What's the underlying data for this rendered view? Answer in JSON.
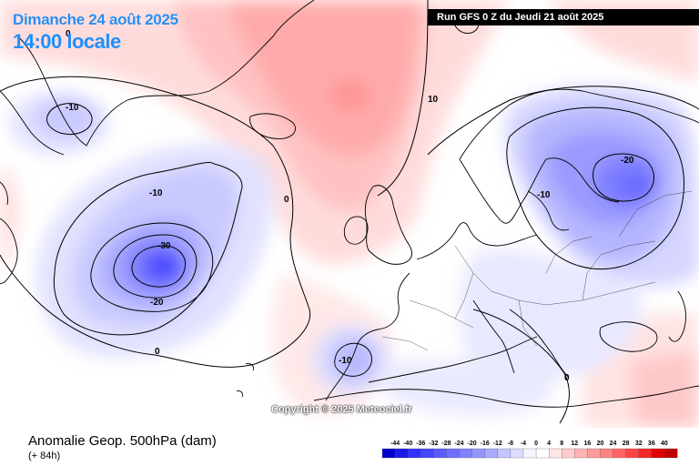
{
  "header": {
    "date_line": "Dimanche 24 août 2025",
    "time_line": "14:00 locale",
    "run_info": "Run GFS 0 Z du Jeudi 21 août 2025"
  },
  "footer": {
    "variable_title": "Anomalie Geop. 500hPa (dam)",
    "lead_time": "(+ 84h)",
    "copyright": "Copyright © 2025 Meteociel.fr"
  },
  "map": {
    "contour_labels": [
      "-10",
      "0",
      "-10",
      "-30",
      "-20",
      "0",
      "0",
      "10",
      "-10",
      "-20",
      "-10",
      "0"
    ],
    "anomaly_regions": [
      {
        "name": "greenland-atlantic-positive",
        "sign": "positive"
      },
      {
        "name": "north-atlantic-low",
        "sign": "negative",
        "min_label": "-30"
      },
      {
        "name": "scandinavia-russia-trough",
        "sign": "negative",
        "min_label": "-20"
      },
      {
        "name": "iberia-cutoff-low",
        "sign": "negative",
        "min_label": "-10"
      }
    ]
  },
  "legend": {
    "labels": [
      "-44",
      "-40",
      "-36",
      "-32",
      "-28",
      "-24",
      "-20",
      "-16",
      "-12",
      "-8",
      "-4",
      "0",
      "4",
      "8",
      "12",
      "16",
      "20",
      "24",
      "28",
      "32",
      "36",
      "40"
    ],
    "colors": [
      "#0000cc",
      "#1a1ae6",
      "#3232ff",
      "#4646ff",
      "#5a5aff",
      "#6e6eff",
      "#8282ff",
      "#9696ff",
      "#aaaaff",
      "#c3c3ff",
      "#dcdcff",
      "#f5f5ff",
      "#ffffff",
      "#ffe6e6",
      "#ffcdcd",
      "#ffb4b4",
      "#ff9b9b",
      "#ff8282",
      "#ff6464",
      "#ff4646",
      "#f02828",
      "#e00000",
      "#c00000"
    ]
  }
}
